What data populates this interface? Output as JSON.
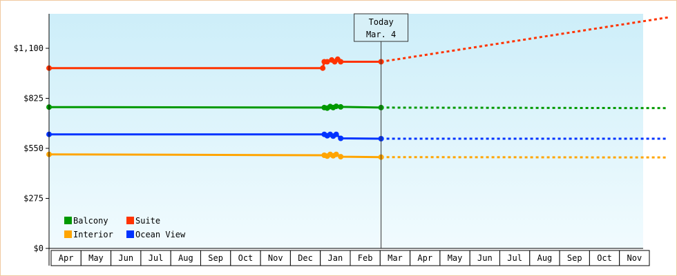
{
  "chart_data": {
    "type": "line",
    "title": "",
    "xlabel": "",
    "ylabel": "",
    "ylim": [
      0,
      1100
    ],
    "y_ticks": [
      {
        "value": 0,
        "label": "$0"
      },
      {
        "value": 275,
        "label": "$275"
      },
      {
        "value": 550,
        "label": "$550"
      },
      {
        "value": 825,
        "label": "$825"
      },
      {
        "value": 1100,
        "label": "$1,100"
      }
    ],
    "x_range_months": [
      0,
      20
    ],
    "months": [
      "Apr",
      "May",
      "Jun",
      "Jul",
      "Aug",
      "Sep",
      "Oct",
      "Nov",
      "Dec",
      "Jan",
      "Feb",
      "Mar",
      "Apr",
      "May",
      "Jun",
      "Jul",
      "Aug",
      "Sep",
      "Oct",
      "Nov"
    ],
    "today": {
      "line1": "Today",
      "line2": "Mar. 4",
      "x": 11.1
    },
    "grid": false,
    "background": [
      "#cdeef9",
      "#f1fbfe"
    ],
    "legend": {
      "position": "bottom-left"
    },
    "series": [
      {
        "name": "Balcony",
        "color": "#009900",
        "points": [
          [
            0,
            777
          ],
          [
            9.2,
            774
          ],
          [
            9.3,
            771
          ],
          [
            9.4,
            780
          ],
          [
            9.5,
            774
          ],
          [
            9.6,
            781
          ],
          [
            9.75,
            778
          ],
          [
            11.1,
            774
          ]
        ],
        "projection": [
          [
            11.1,
            774
          ],
          [
            20.7,
            771
          ]
        ]
      },
      {
        "name": "Suite",
        "color": "#ff3300",
        "points": [
          [
            0,
            991
          ],
          [
            9.15,
            991
          ],
          [
            9.2,
            1026
          ],
          [
            9.3,
            1026
          ],
          [
            9.45,
            1036
          ],
          [
            9.55,
            1026
          ],
          [
            9.65,
            1040
          ],
          [
            9.75,
            1026
          ],
          [
            11.1,
            1026
          ]
        ],
        "projection": [
          [
            11.1,
            1026
          ],
          [
            20.7,
            1270
          ]
        ]
      },
      {
        "name": "Interior",
        "color": "#ffa500",
        "points": [
          [
            0,
            517
          ],
          [
            9.2,
            512
          ],
          [
            9.3,
            507
          ],
          [
            9.4,
            517
          ],
          [
            9.5,
            509
          ],
          [
            9.6,
            517
          ],
          [
            9.75,
            504
          ],
          [
            11.1,
            502
          ]
        ],
        "projection": [
          [
            11.1,
            502
          ],
          [
            20.7,
            500
          ]
        ]
      },
      {
        "name": "Ocean View",
        "color": "#0033ff",
        "points": [
          [
            0,
            627
          ],
          [
            9.2,
            627
          ],
          [
            9.3,
            619
          ],
          [
            9.4,
            627
          ],
          [
            9.5,
            617
          ],
          [
            9.6,
            627
          ],
          [
            9.75,
            605
          ],
          [
            11.1,
            603
          ]
        ],
        "projection": [
          [
            11.1,
            603
          ],
          [
            20.7,
            603
          ]
        ]
      }
    ]
  }
}
